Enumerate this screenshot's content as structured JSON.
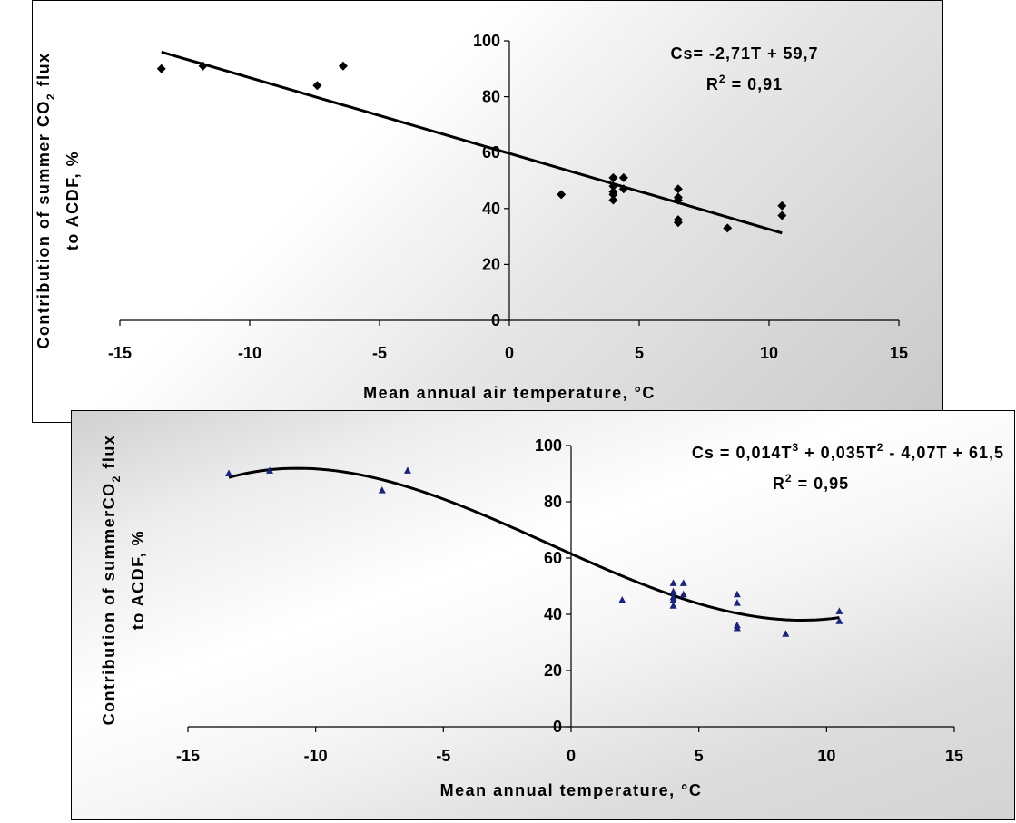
{
  "chart_data": [
    {
      "type": "scatter",
      "xlabel": "Mean annual air temperature, °C",
      "ylabel_line1": "Contribution of summer CO",
      "ylabel_sub": "2",
      "ylabel_line1_tail": " flux",
      "ylabel_line2": "to ACDF, %",
      "xlim": [
        -15,
        15
      ],
      "ylim": [
        0,
        100
      ],
      "x_ticks": [
        -15,
        -10,
        -5,
        0,
        5,
        10,
        15
      ],
      "y_ticks": [
        0,
        20,
        40,
        60,
        80,
        100
      ],
      "equation_line1": "Cs= -2,71T + 59,7",
      "equation_r2_prefix": "R",
      "equation_r2_sup": "2",
      "equation_r2_suffix": " = 0,91",
      "marker": "diamond",
      "marker_color": "#000000",
      "trendline": {
        "kind": "linear",
        "slope": -2.71,
        "intercept": 59.7,
        "x_range": [
          -13.4,
          10.5
        ],
        "color": "#000000"
      },
      "points": [
        {
          "x": -13.4,
          "y": 90
        },
        {
          "x": -11.8,
          "y": 91
        },
        {
          "x": -7.4,
          "y": 84
        },
        {
          "x": -6.4,
          "y": 91
        },
        {
          "x": 2.0,
          "y": 45
        },
        {
          "x": 4.0,
          "y": 51
        },
        {
          "x": 4.0,
          "y": 48
        },
        {
          "x": 4.0,
          "y": 46
        },
        {
          "x": 4.0,
          "y": 45
        },
        {
          "x": 4.0,
          "y": 43
        },
        {
          "x": 4.4,
          "y": 51
        },
        {
          "x": 4.4,
          "y": 47
        },
        {
          "x": 6.5,
          "y": 47
        },
        {
          "x": 6.5,
          "y": 44
        },
        {
          "x": 6.5,
          "y": 43
        },
        {
          "x": 6.5,
          "y": 36
        },
        {
          "x": 6.5,
          "y": 35
        },
        {
          "x": 8.4,
          "y": 33
        },
        {
          "x": 10.5,
          "y": 41
        },
        {
          "x": 10.5,
          "y": 37.5
        }
      ]
    },
    {
      "type": "scatter",
      "xlabel": "Mean annual temperature, °C",
      "ylabel_line1": "Contribution of summerCO",
      "ylabel_sub": "2",
      "ylabel_line1_tail": "  flux",
      "ylabel_line2": "to ACDF, %",
      "xlim": [
        -15,
        15
      ],
      "ylim": [
        0,
        100
      ],
      "x_ticks": [
        -15,
        -10,
        -5,
        0,
        5,
        10,
        15
      ],
      "y_ticks": [
        0,
        20,
        40,
        60,
        80,
        100
      ],
      "equation_line1_parts": [
        "Cs = 0,014T",
        "3",
        " + 0,035T",
        "2",
        " - 4,07T + 61,5"
      ],
      "equation_r2_prefix": "R",
      "equation_r2_sup": "2",
      "equation_r2_suffix": " = 0,95",
      "marker": "triangle",
      "marker_color": "#1a237e",
      "trendline": {
        "kind": "cubic",
        "a3": 0.014,
        "a2": 0.035,
        "a1": -4.07,
        "a0": 61.5,
        "x_range": [
          -13.4,
          10.5
        ],
        "color": "#000000"
      },
      "points": [
        {
          "x": -13.4,
          "y": 90
        },
        {
          "x": -11.8,
          "y": 91
        },
        {
          "x": -7.4,
          "y": 84
        },
        {
          "x": -6.4,
          "y": 91
        },
        {
          "x": 2.0,
          "y": 45
        },
        {
          "x": 4.0,
          "y": 51
        },
        {
          "x": 4.0,
          "y": 48
        },
        {
          "x": 4.0,
          "y": 46
        },
        {
          "x": 4.0,
          "y": 45
        },
        {
          "x": 4.0,
          "y": 43
        },
        {
          "x": 4.4,
          "y": 51
        },
        {
          "x": 4.4,
          "y": 47
        },
        {
          "x": 6.5,
          "y": 47
        },
        {
          "x": 6.5,
          "y": 44
        },
        {
          "x": 6.5,
          "y": 36
        },
        {
          "x": 6.5,
          "y": 35
        },
        {
          "x": 8.4,
          "y": 33
        },
        {
          "x": 10.5,
          "y": 41
        },
        {
          "x": 10.5,
          "y": 37.5
        }
      ]
    }
  ]
}
